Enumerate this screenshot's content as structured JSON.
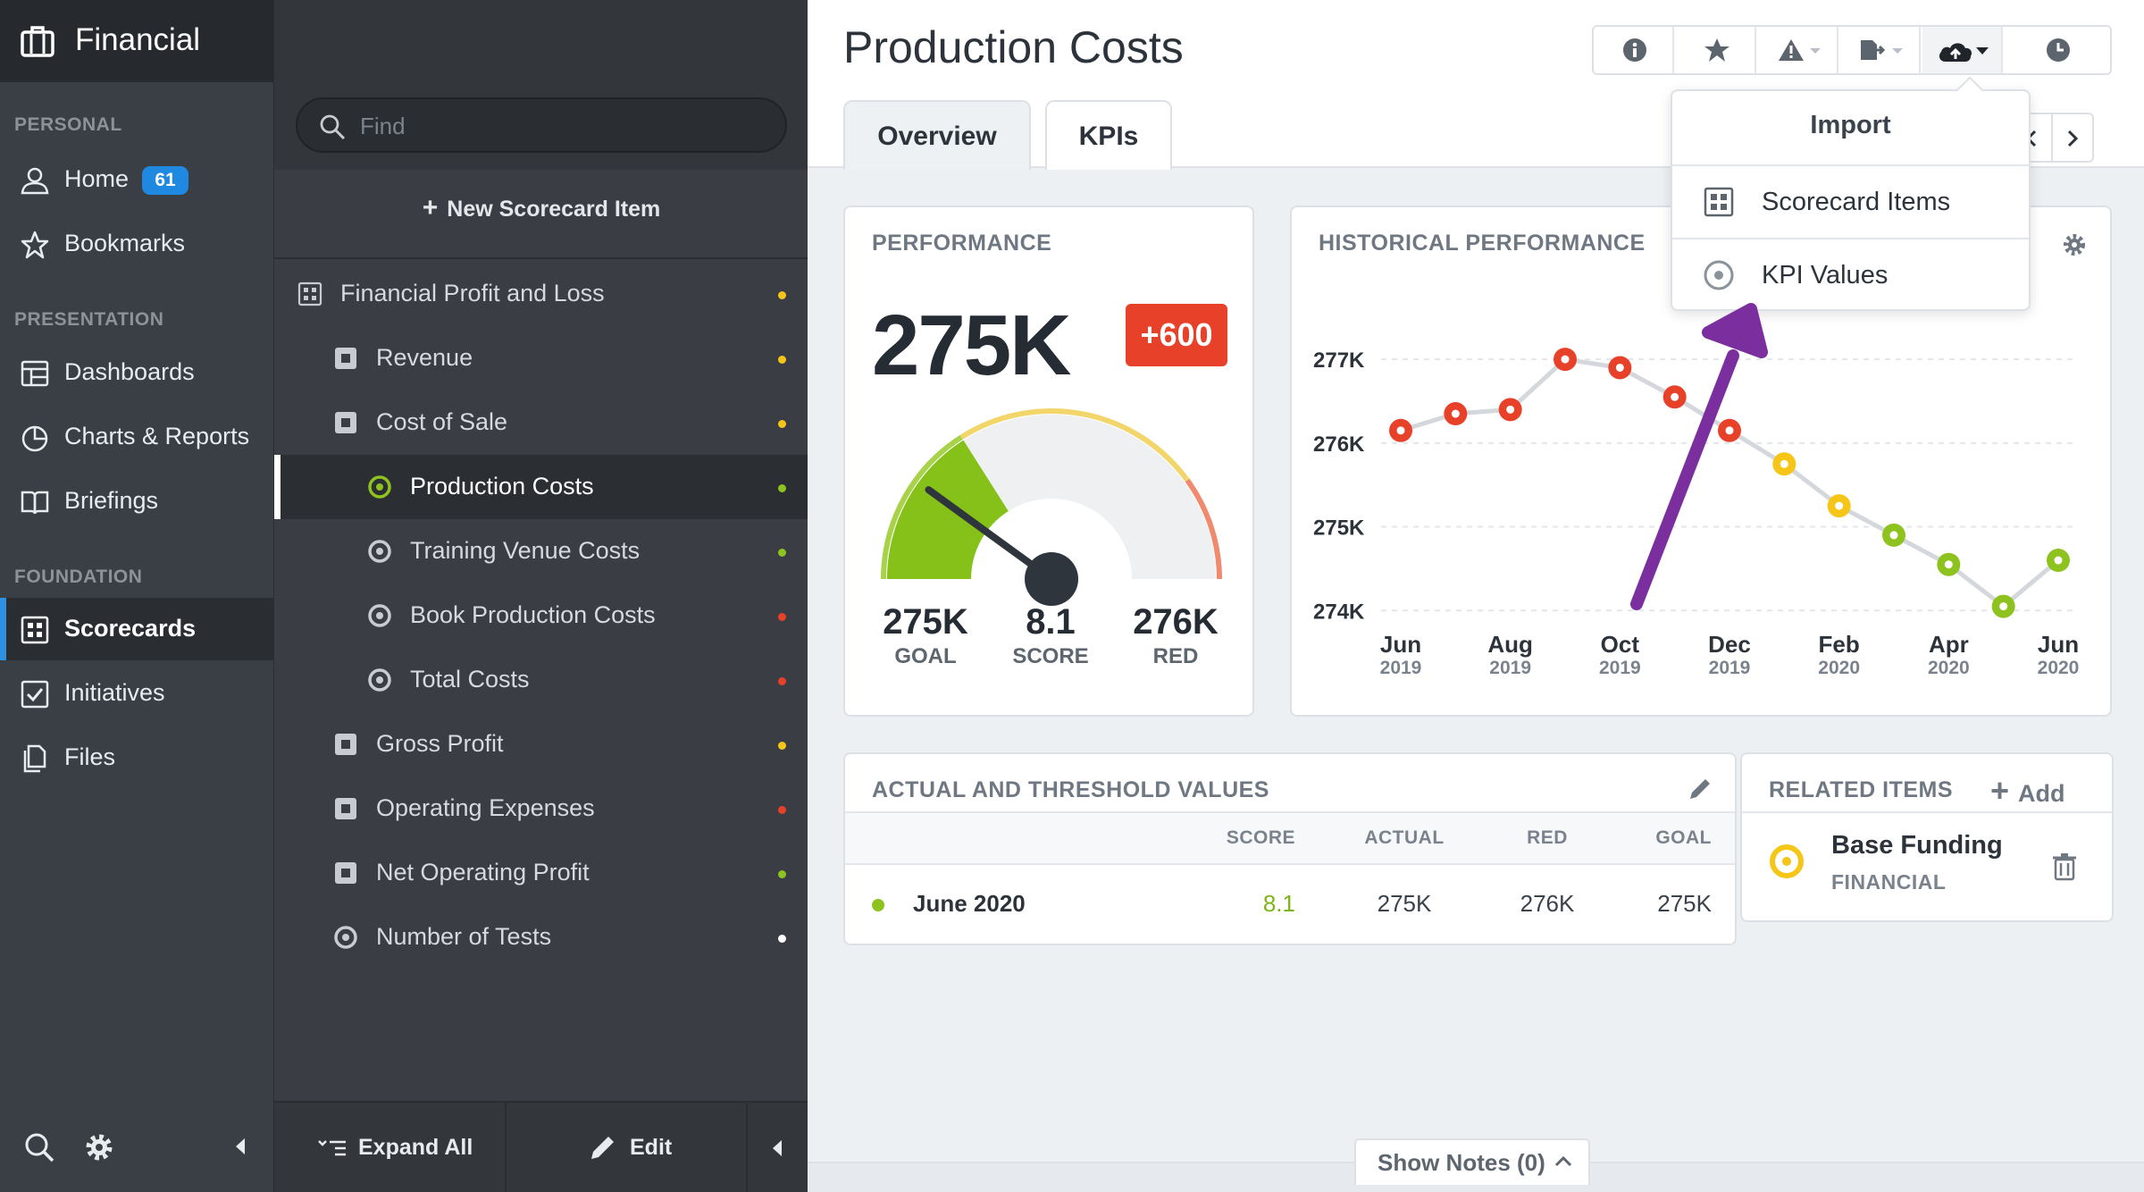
{
  "nav": {
    "brand": "Financial",
    "sections": {
      "personal": "PERSONAL",
      "presentation": "PRESENTATION",
      "foundation": "FOUNDATION"
    },
    "items": [
      {
        "label": "Home",
        "icon": "user-icon",
        "badge": "61"
      },
      {
        "label": "Bookmarks",
        "icon": "star-icon"
      },
      {
        "label": "Dashboards",
        "icon": "dashboard-icon"
      },
      {
        "label": "Charts & Reports",
        "icon": "pie-chart-icon"
      },
      {
        "label": "Briefings",
        "icon": "book-icon"
      },
      {
        "label": "Scorecards",
        "icon": "scorecard-icon",
        "active": true
      },
      {
        "label": "Initiatives",
        "icon": "checkbox-icon"
      },
      {
        "label": "Files",
        "icon": "files-icon"
      }
    ]
  },
  "tree": {
    "search_placeholder": "Find",
    "new_item": "New Scorecard Item",
    "rows": [
      {
        "label": "Financial Profit and Loss",
        "type": "scorecard",
        "status": "#f5c518"
      },
      {
        "label": "Revenue",
        "type": "objective",
        "status": "#f5c518"
      },
      {
        "label": "Cost of Sale",
        "type": "objective",
        "status": "#f5c518"
      },
      {
        "label": "Production Costs",
        "type": "kpi",
        "status": "#8dc21f",
        "selected": true
      },
      {
        "label": "Training Venue Costs",
        "type": "kpi",
        "status": "#8dc21f"
      },
      {
        "label": "Book Production Costs",
        "type": "kpi",
        "status": "#e8412a"
      },
      {
        "label": "Total Costs",
        "type": "kpi",
        "status": "#e8412a"
      },
      {
        "label": "Gross Profit",
        "type": "objective",
        "status": "#f5c518"
      },
      {
        "label": "Operating Expenses",
        "type": "objective",
        "status": "#e8412a"
      },
      {
        "label": "Net Operating Profit",
        "type": "objective",
        "status": "#8dc21f"
      },
      {
        "label": "Number of Tests",
        "type": "kpi",
        "status": "#ffffff"
      }
    ],
    "footer": {
      "expand_all": "Expand All",
      "edit": "Edit"
    }
  },
  "main": {
    "title": "Production Costs",
    "tabs": [
      "Overview",
      "KPIs"
    ],
    "dropdown": {
      "header": "Import",
      "items": [
        {
          "label": "Scorecard Items",
          "icon": "scorecard-icon"
        },
        {
          "label": "KPI Values",
          "icon": "kpi-icon"
        }
      ]
    },
    "performance": {
      "title": "PERFORMANCE",
      "value": "275K",
      "delta": "+600",
      "goal_value": "275K",
      "goal_label": "GOAL",
      "score_value": "8.1",
      "score_label": "SCORE",
      "red_value": "276K",
      "red_label": "RED",
      "gauge_score": 8.1
    },
    "history_title": "HISTORICAL PERFORMANCE",
    "table": {
      "title": "ACTUAL AND THRESHOLD VALUES",
      "columns": [
        "SCORE",
        "ACTUAL",
        "RED",
        "GOAL"
      ],
      "row": {
        "period": "June 2020",
        "score": "8.1",
        "actual": "275K",
        "red": "276K",
        "goal": "275K"
      }
    },
    "related": {
      "title": "RELATED ITEMS",
      "add": "Add",
      "item": {
        "name": "Base Funding",
        "sub": "FINANCIAL"
      }
    },
    "show_notes": "Show Notes (0)"
  },
  "chart_data": {
    "type": "line",
    "title": "HISTORICAL PERFORMANCE",
    "x_tick_labels": [
      [
        "Jun",
        "2019"
      ],
      [
        "Aug",
        "2019"
      ],
      [
        "Oct",
        "2019"
      ],
      [
        "Dec",
        "2019"
      ],
      [
        "Feb",
        "2020"
      ],
      [
        "Apr",
        "2020"
      ],
      [
        "Jun",
        "2020"
      ]
    ],
    "y_tick_labels": [
      "277K",
      "276K",
      "275K",
      "274K"
    ],
    "y_ticks": [
      277,
      276,
      275,
      274
    ],
    "ylim": [
      273.8,
      277.3
    ],
    "points": [
      {
        "x": 0,
        "y": 276.15,
        "color": "#e8412a"
      },
      {
        "x": 1,
        "y": 276.35,
        "color": "#e8412a"
      },
      {
        "x": 2,
        "y": 276.4,
        "color": "#e8412a"
      },
      {
        "x": 3,
        "y": 277.0,
        "color": "#e8412a"
      },
      {
        "x": 4,
        "y": 276.9,
        "color": "#e8412a"
      },
      {
        "x": 5,
        "y": 276.55,
        "color": "#e8412a"
      },
      {
        "x": 6,
        "y": 276.15,
        "color": "#e8412a"
      },
      {
        "x": 7,
        "y": 275.75,
        "color": "#f5c518"
      },
      {
        "x": 8,
        "y": 275.25,
        "color": "#f5c518"
      },
      {
        "x": 9,
        "y": 274.9,
        "color": "#8dc21f"
      },
      {
        "x": 10,
        "y": 274.55,
        "color": "#8dc21f"
      },
      {
        "x": 11,
        "y": 274.05,
        "color": "#8dc21f"
      },
      {
        "x": 12,
        "y": 274.6,
        "color": "#8dc21f"
      }
    ]
  }
}
